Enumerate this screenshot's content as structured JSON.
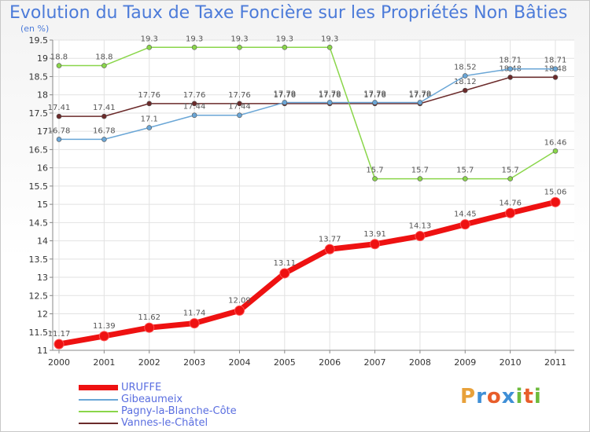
{
  "title": "Evolution du Taux de Taxe Foncière sur les Propriétés Non Bâties",
  "unit_label": "(en %)",
  "logo": {
    "letters": [
      "P",
      "r",
      "o",
      "x",
      "i",
      "t",
      "i"
    ],
    "colors": [
      "#e8a13a",
      "#3f8fd6",
      "#e85d2a",
      "#3f8fd6",
      "#6dbb3c",
      "#e85d2a",
      "#6dbb3c"
    ]
  },
  "chart_data": {
    "type": "line",
    "title": "Evolution du Taux de Taxe Foncière sur les Propriétés Non Bâties",
    "xlabel": "",
    "ylabel": "(en %)",
    "x": [
      "2000",
      "2001",
      "2002",
      "2003",
      "2004",
      "2005",
      "2006",
      "2007",
      "2008",
      "2009",
      "2010",
      "2011"
    ],
    "ylim": [
      11,
      19.5
    ],
    "yticks": [
      "11",
      "11.5",
      "12",
      "12.5",
      "13",
      "13.5",
      "14",
      "14.5",
      "15",
      "15.5",
      "16",
      "16.5",
      "17",
      "17.5",
      "18",
      "18.5",
      "19",
      "19.5"
    ],
    "grid": true,
    "legend": "bottom-left",
    "series": [
      {
        "name": "URUFFE",
        "color": "#ee1111",
        "width": 7,
        "radius": 6,
        "values": [
          11.17,
          11.39,
          11.62,
          11.74,
          12.09,
          13.11,
          13.77,
          13.91,
          14.13,
          14.45,
          14.76,
          15.06
        ],
        "labels": [
          "11.17",
          "11.39",
          "11.62",
          "11.74",
          "12.09",
          "13.11",
          "13.77",
          "13.91",
          "14.13",
          "14.45",
          "14.76",
          "15.06"
        ]
      },
      {
        "name": "Gibeaumeix",
        "color": "#6aa6d6",
        "width": 1.5,
        "radius": 3,
        "values": [
          16.78,
          16.78,
          17.1,
          17.44,
          17.44,
          17.79,
          17.79,
          17.79,
          17.79,
          18.52,
          18.71,
          18.71
        ],
        "labels": [
          "16.78",
          "16.78",
          "17.1",
          "17.44",
          "17.44",
          "17.79",
          "17.79",
          "17.79",
          "17.79",
          "18.52",
          "18.71",
          "18.71"
        ]
      },
      {
        "name": "Pagny-la-Blanche-Côte",
        "color": "#8ad64a",
        "width": 1.5,
        "radius": 3,
        "values": [
          18.8,
          18.8,
          19.3,
          19.3,
          19.3,
          19.3,
          19.3,
          15.7,
          15.7,
          15.7,
          15.7,
          16.46
        ],
        "labels": [
          "18.8",
          "18.8",
          "19.3",
          "19.3",
          "19.3",
          "19.3",
          "19.3",
          "15.7",
          "15.7",
          "15.7",
          "15.7",
          "16.46"
        ]
      },
      {
        "name": "Vannes-le-Châtel",
        "color": "#6b2a2a",
        "width": 1.5,
        "radius": 3,
        "values": [
          17.41,
          17.41,
          17.76,
          17.76,
          17.76,
          17.76,
          17.76,
          17.76,
          17.76,
          18.12,
          18.48,
          18.48
        ],
        "labels": [
          "17.41",
          "17.41",
          "17.76",
          "17.76",
          "17.76",
          "17.76",
          "17.76",
          "17.76",
          "17.76",
          "18.12",
          "18.48",
          "18.48"
        ]
      }
    ]
  }
}
